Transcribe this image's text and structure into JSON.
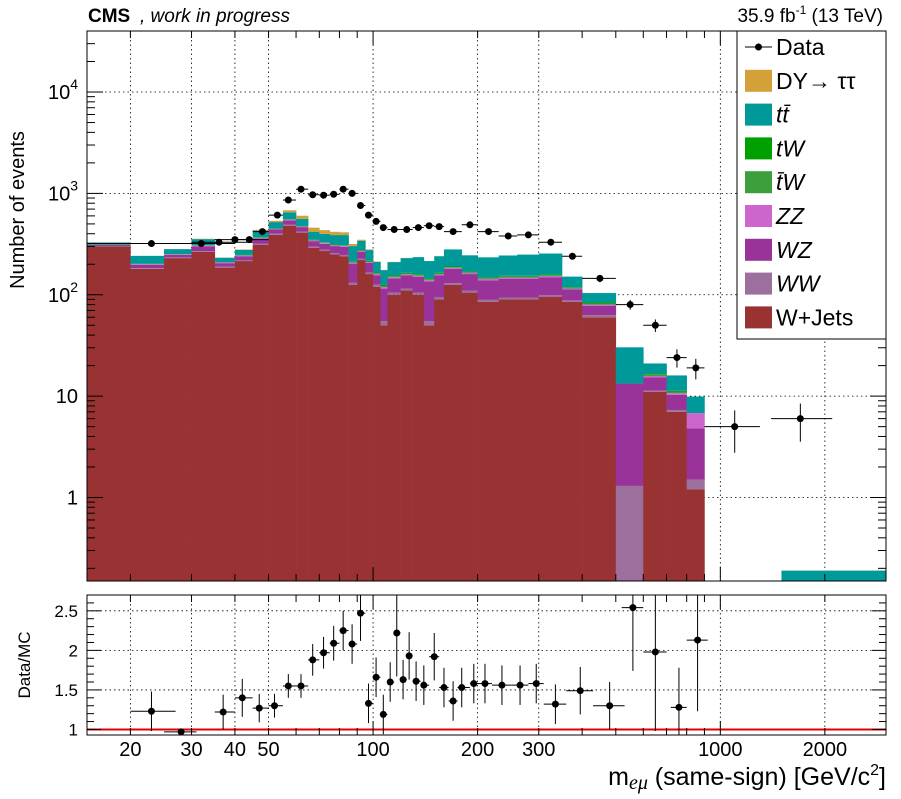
{
  "header": {
    "experiment": "CMS",
    "status": ", work in progress",
    "lumi_value": "35.9 fb",
    "lumi_exp": "-1",
    "lumi_energy": " (13 TeV)"
  },
  "axes": {
    "ylabel_top": "Number of events",
    "ylabel_bottom": "Data/MC",
    "xlabel_main": "m",
    "xlabel_sub": "eμ",
    "xlabel_rest": " (same-sign) [GeV/c",
    "xlabel_sup": "2",
    "xlabel_end": "]"
  },
  "chart_data": {
    "type": "bar",
    "stacked": true,
    "x_scale": "log",
    "y_scale": "log",
    "xlim": [
      15,
      3000
    ],
    "ylim": [
      0.15,
      40000
    ],
    "ratio_ylim": [
      0.93,
      2.7
    ],
    "grid": true,
    "legend_position": "top-right",
    "x_ticks": [
      {
        "value": 20,
        "label": "20"
      },
      {
        "value": 30,
        "label": "30"
      },
      {
        "value": 40,
        "label": "40"
      },
      {
        "value": 50,
        "label": "50"
      },
      {
        "value": 100,
        "label": "100"
      },
      {
        "value": 200,
        "label": "200"
      },
      {
        "value": 300,
        "label": "300"
      },
      {
        "value": 1000,
        "label": "1000"
      },
      {
        "value": 2000,
        "label": "2000"
      }
    ],
    "y_ticks": [
      {
        "value": 1,
        "label": "1"
      },
      {
        "value": 10,
        "label": "10"
      },
      {
        "value": 100,
        "label": "10",
        "exp": "2"
      },
      {
        "value": 1000,
        "label": "10",
        "exp": "3"
      },
      {
        "value": 10000,
        "label": "10",
        "exp": "4"
      }
    ],
    "ratio_ticks": [
      {
        "value": 1,
        "label": "1"
      },
      {
        "value": 1.5,
        "label": "1.5"
      },
      {
        "value": 2,
        "label": "2"
      },
      {
        "value": 2.5,
        "label": "2.5"
      }
    ],
    "legend": [
      {
        "key": "data",
        "name": "Data",
        "style": "marker",
        "color": "#000000"
      },
      {
        "key": "dy",
        "name": "DY→ ττ",
        "style": "box",
        "color": "#d4a038"
      },
      {
        "key": "tt",
        "name": "tt̄",
        "style": "box",
        "color": "#009999"
      },
      {
        "key": "tw",
        "name": "tW",
        "style": "box",
        "color": "#00a000"
      },
      {
        "key": "tbarw",
        "name": "t̄W",
        "style": "box",
        "color": "#3c9f3c"
      },
      {
        "key": "zz",
        "name": "ZZ",
        "style": "box",
        "color": "#cc66cc"
      },
      {
        "key": "wz",
        "name": "WZ",
        "style": "box",
        "color": "#993399"
      },
      {
        "key": "ww",
        "name": "WW",
        "style": "box",
        "color": "#9c6f9c"
      },
      {
        "key": "wjets",
        "name": "W+Jets",
        "style": "box",
        "color": "#993333"
      }
    ],
    "stack_order": [
      "wjets",
      "ww",
      "wz",
      "zz",
      "tbarw",
      "tw",
      "tt",
      "dy"
    ],
    "bins": [
      {
        "lo": 15,
        "hi": 20,
        "wjets": 300,
        "ww": 3,
        "wz": 8,
        "zz": 0,
        "tbarw": 1,
        "tw": 1,
        "tt": 15,
        "dy": 0
      },
      {
        "lo": 20,
        "hi": 25,
        "wjets": 180,
        "ww": 3,
        "wz": 15,
        "zz": 2,
        "tbarw": 1,
        "tw": 1,
        "tt": 40,
        "dy": 0
      },
      {
        "lo": 25,
        "hi": 30,
        "wjets": 230,
        "ww": 4,
        "wz": 14,
        "zz": 2,
        "tbarw": 1,
        "tw": 1,
        "tt": 30,
        "dy": 0
      },
      {
        "lo": 30,
        "hi": 35,
        "wjets": 265,
        "ww": 5,
        "wz": 30,
        "zz": 5,
        "tbarw": 2,
        "tw": 2,
        "tt": 45,
        "dy": 3
      },
      {
        "lo": 35,
        "hi": 40,
        "wjets": 185,
        "ww": 4,
        "wz": 16,
        "zz": 3,
        "tbarw": 1,
        "tw": 1,
        "tt": 22,
        "dy": 1
      },
      {
        "lo": 40,
        "hi": 45,
        "wjets": 215,
        "ww": 5,
        "wz": 20,
        "zz": 3,
        "tbarw": 2,
        "tw": 2,
        "tt": 30,
        "dy": 3
      },
      {
        "lo": 45,
        "hi": 50,
        "wjets": 310,
        "ww": 8,
        "wz": 40,
        "zz": 5,
        "tbarw": 3,
        "tw": 3,
        "tt": 60,
        "dy": 8
      },
      {
        "lo": 50,
        "hi": 55,
        "wjets": 390,
        "ww": 10,
        "wz": 40,
        "zz": 5,
        "tbarw": 3,
        "tw": 3,
        "tt": 70,
        "dy": 15
      },
      {
        "lo": 55,
        "hi": 60,
        "wjets": 480,
        "ww": 12,
        "wz": 50,
        "zz": 6,
        "tbarw": 4,
        "tw": 4,
        "tt": 95,
        "dy": 30
      },
      {
        "lo": 60,
        "hi": 65,
        "wjets": 410,
        "ww": 10,
        "wz": 45,
        "zz": 6,
        "tbarw": 3,
        "tw": 3,
        "tt": 85,
        "dy": 40
      },
      {
        "lo": 65,
        "hi": 70,
        "wjets": 290,
        "ww": 8,
        "wz": 40,
        "zz": 5,
        "tbarw": 3,
        "tw": 3,
        "tt": 70,
        "dy": 40
      },
      {
        "lo": 70,
        "hi": 75,
        "wjets": 270,
        "ww": 8,
        "wz": 40,
        "zz": 5,
        "tbarw": 3,
        "tw": 3,
        "tt": 70,
        "dy": 35
      },
      {
        "lo": 75,
        "hi": 80,
        "wjets": 250,
        "ww": 7,
        "wz": 45,
        "zz": 5,
        "tbarw": 3,
        "tw": 3,
        "tt": 75,
        "dy": 30
      },
      {
        "lo": 80,
        "hi": 85,
        "wjets": 240,
        "ww": 7,
        "wz": 50,
        "zz": 5,
        "tbarw": 3,
        "tw": 3,
        "tt": 80,
        "dy": 25
      },
      {
        "lo": 85,
        "hi": 90,
        "wjets": 125,
        "ww": 6,
        "wz": 70,
        "zz": 5,
        "tbarw": 3,
        "tw": 3,
        "tt": 90,
        "dy": 15
      },
      {
        "lo": 90,
        "hi": 95,
        "wjets": 220,
        "ww": 6,
        "wz": 40,
        "zz": 4,
        "tbarw": 3,
        "tw": 3,
        "tt": 65,
        "dy": 8
      },
      {
        "lo": 95,
        "hi": 100,
        "wjets": 160,
        "ww": 6,
        "wz": 40,
        "zz": 4,
        "tbarw": 3,
        "tw": 3,
        "tt": 60,
        "dy": 4
      },
      {
        "lo": 100,
        "hi": 105,
        "wjets": 120,
        "ww": 6,
        "wz": 30,
        "zz": 4,
        "tbarw": 3,
        "tw": 3,
        "tt": 45,
        "dy": 2
      },
      {
        "lo": 105,
        "hi": 110,
        "wjets": 50,
        "ww": 5,
        "wz": 60,
        "zz": 4,
        "tbarw": 3,
        "tw": 3,
        "tt": 50,
        "dy": 1
      },
      {
        "lo": 110,
        "hi": 120,
        "wjets": 100,
        "ww": 5,
        "wz": 40,
        "zz": 4,
        "tbarw": 3,
        "tw": 3,
        "tt": 55,
        "dy": 1
      },
      {
        "lo": 120,
        "hi": 130,
        "wjets": 110,
        "ww": 5,
        "wz": 40,
        "zz": 4,
        "tbarw": 3,
        "tw": 3,
        "tt": 65,
        "dy": 1
      },
      {
        "lo": 130,
        "hi": 140,
        "wjets": 100,
        "ww": 5,
        "wz": 45,
        "zz": 4,
        "tbarw": 3,
        "tw": 3,
        "tt": 75,
        "dy": 0
      },
      {
        "lo": 140,
        "hi": 150,
        "wjets": 50,
        "ww": 5,
        "wz": 80,
        "zz": 4,
        "tbarw": 3,
        "tw": 3,
        "tt": 70,
        "dy": 0
      },
      {
        "lo": 150,
        "hi": 160,
        "wjets": 90,
        "ww": 5,
        "wz": 60,
        "zz": 4,
        "tbarw": 3,
        "tw": 3,
        "tt": 75,
        "dy": 0
      },
      {
        "lo": 160,
        "hi": 180,
        "wjets": 125,
        "ww": 5,
        "wz": 50,
        "zz": 4,
        "tbarw": 3,
        "tw": 3,
        "tt": 90,
        "dy": 0
      },
      {
        "lo": 180,
        "hi": 200,
        "wjets": 105,
        "ww": 5,
        "wz": 50,
        "zz": 4,
        "tbarw": 3,
        "tw": 3,
        "tt": 75,
        "dy": 0
      },
      {
        "lo": 200,
        "hi": 230,
        "wjets": 85,
        "ww": 4,
        "wz": 50,
        "zz": 4,
        "tbarw": 3,
        "tw": 3,
        "tt": 85,
        "dy": 0
      },
      {
        "lo": 230,
        "hi": 260,
        "wjets": 90,
        "ww": 4,
        "wz": 50,
        "zz": 4,
        "tbarw": 3,
        "tw": 3,
        "tt": 90,
        "dy": 0
      },
      {
        "lo": 260,
        "hi": 300,
        "wjets": 90,
        "ww": 4,
        "wz": 50,
        "zz": 4,
        "tbarw": 3,
        "tw": 3,
        "tt": 95,
        "dy": 0
      },
      {
        "lo": 300,
        "hi": 350,
        "wjets": 95,
        "ww": 4,
        "wz": 50,
        "zz": 4,
        "tbarw": 3,
        "tw": 3,
        "tt": 96,
        "dy": 0
      },
      {
        "lo": 350,
        "hi": 400,
        "wjets": 85,
        "ww": 3,
        "wz": 25,
        "zz": 2,
        "tbarw": 2,
        "tw": 2,
        "tt": 32,
        "dy": 0
      },
      {
        "lo": 400,
        "hi": 500,
        "wjets": 60,
        "ww": 3,
        "wz": 15,
        "zz": 2,
        "tbarw": 2,
        "tw": 2,
        "tt": 20,
        "dy": 0
      },
      {
        "lo": 500,
        "hi": 600,
        "wjets": 0,
        "ww": 1.3,
        "wz": 12,
        "zz": 0,
        "tbarw": 0,
        "tw": 0,
        "tt": 17,
        "dy": 0
      },
      {
        "lo": 600,
        "hi": 700,
        "wjets": 11,
        "ww": 0.3,
        "wz": 4,
        "zz": 0.5,
        "tbarw": 0.6,
        "tw": 0.3,
        "tt": 4.3,
        "dy": 0
      },
      {
        "lo": 700,
        "hi": 800,
        "wjets": 7,
        "ww": 0.3,
        "wz": 3,
        "zz": 0.4,
        "tbarw": 0.3,
        "tw": 0.3,
        "tt": 4.7,
        "dy": 0
      },
      {
        "lo": 800,
        "hi": 900,
        "wjets": 1.2,
        "ww": 0.3,
        "wz": 3.3,
        "zz": 2,
        "tbarw": 0,
        "tw": 0,
        "tt": 3.1,
        "dy": 0
      },
      {
        "lo": 1500,
        "hi": 3000,
        "wjets": 0,
        "ww": 0,
        "wz": 0,
        "zz": 0,
        "tbarw": 0,
        "tw": 0,
        "tt": 0.19,
        "dy": 0
      }
    ],
    "data_points": [
      {
        "x": 23,
        "xlo": 15,
        "xhi": 30,
        "y": 320
      },
      {
        "x": 32,
        "xlo": 25,
        "xhi": 40,
        "y": 320
      },
      {
        "x": 36,
        "xlo": 30,
        "xhi": 45,
        "y": 330
      },
      {
        "x": 40,
        "xlo": 35,
        "xhi": 45,
        "y": 350
      },
      {
        "x": 44,
        "xlo": 40,
        "xhi": 50,
        "y": 350
      },
      {
        "x": 48,
        "xlo": 45,
        "xhi": 50,
        "y": 420
      },
      {
        "x": 53,
        "xlo": 50,
        "xhi": 55,
        "y": 610
      },
      {
        "x": 57,
        "xlo": 55,
        "xhi": 60,
        "y": 860
      },
      {
        "x": 62,
        "xlo": 60,
        "xhi": 65,
        "y": 1100
      },
      {
        "x": 67,
        "xlo": 65,
        "xhi": 70,
        "y": 970
      },
      {
        "x": 72,
        "xlo": 70,
        "xhi": 75,
        "y": 960
      },
      {
        "x": 77,
        "xlo": 75,
        "xhi": 80,
        "y": 980
      },
      {
        "x": 82,
        "xlo": 80,
        "xhi": 85,
        "y": 1100
      },
      {
        "x": 87,
        "xlo": 85,
        "xhi": 90,
        "y": 1000
      },
      {
        "x": 92,
        "xlo": 90,
        "xhi": 95,
        "y": 760
      },
      {
        "x": 97,
        "xlo": 95,
        "xhi": 100,
        "y": 610
      },
      {
        "x": 102,
        "xlo": 100,
        "xhi": 105,
        "y": 530
      },
      {
        "x": 107,
        "xlo": 105,
        "xhi": 110,
        "y": 460
      },
      {
        "x": 115,
        "xlo": 110,
        "xhi": 120,
        "y": 440
      },
      {
        "x": 125,
        "xlo": 120,
        "xhi": 130,
        "y": 440
      },
      {
        "x": 135,
        "xlo": 130,
        "xhi": 140,
        "y": 460
      },
      {
        "x": 145,
        "xlo": 140,
        "xhi": 150,
        "y": 480
      },
      {
        "x": 155,
        "xlo": 150,
        "xhi": 160,
        "y": 470
      },
      {
        "x": 170,
        "xlo": 160,
        "xhi": 180,
        "y": 420
      },
      {
        "x": 190,
        "xlo": 180,
        "xhi": 200,
        "y": 490
      },
      {
        "x": 215,
        "xlo": 200,
        "xhi": 230,
        "y": 420
      },
      {
        "x": 245,
        "xlo": 230,
        "xhi": 260,
        "y": 380
      },
      {
        "x": 280,
        "xlo": 260,
        "xhi": 300,
        "y": 390
      },
      {
        "x": 325,
        "xlo": 300,
        "xhi": 350,
        "y": 330
      },
      {
        "x": 375,
        "xlo": 350,
        "xhi": 400,
        "y": 240
      },
      {
        "x": 450,
        "xlo": 400,
        "xhi": 500,
        "y": 145
      },
      {
        "x": 550,
        "xlo": 500,
        "xhi": 600,
        "y": 80
      },
      {
        "x": 650,
        "xlo": 600,
        "xhi": 700,
        "y": 50
      },
      {
        "x": 750,
        "xlo": 700,
        "xhi": 800,
        "y": 24
      },
      {
        "x": 850,
        "xlo": 800,
        "xhi": 900,
        "y": 19
      },
      {
        "x": 1100,
        "xlo": 900,
        "xhi": 1300,
        "y": 5
      },
      {
        "x": 1700,
        "xlo": 1400,
        "xhi": 2100,
        "y": 6
      }
    ],
    "ratio_points": [
      {
        "x": 23,
        "xlo": 20,
        "xhi": 27,
        "y": 1.23,
        "err": 0.25
      },
      {
        "x": 28,
        "xlo": 25,
        "xhi": 31,
        "y": 0.97,
        "err": 0.04
      },
      {
        "x": 37,
        "xlo": 35,
        "xhi": 40,
        "y": 1.22,
        "err": 0.22
      },
      {
        "x": 42,
        "xlo": 40,
        "xhi": 45,
        "y": 1.4,
        "err": 0.24
      },
      {
        "x": 47,
        "xlo": 45,
        "xhi": 50,
        "y": 1.27,
        "err": 0.18
      },
      {
        "x": 52,
        "xlo": 50,
        "xhi": 55,
        "y": 1.3,
        "err": 0.15
      },
      {
        "x": 57,
        "xlo": 55,
        "xhi": 60,
        "y": 1.55,
        "err": 0.15
      },
      {
        "x": 62,
        "xlo": 60,
        "xhi": 65,
        "y": 1.55,
        "err": 0.15
      },
      {
        "x": 67,
        "xlo": 65,
        "xhi": 70,
        "y": 1.88,
        "err": 0.2
      },
      {
        "x": 72,
        "xlo": 70,
        "xhi": 75,
        "y": 1.97,
        "err": 0.2
      },
      {
        "x": 77,
        "xlo": 75,
        "xhi": 80,
        "y": 2.09,
        "err": 0.22
      },
      {
        "x": 82,
        "xlo": 80,
        "xhi": 85,
        "y": 2.25,
        "err": 0.25
      },
      {
        "x": 87,
        "xlo": 85,
        "xhi": 90,
        "y": 2.08,
        "err": 0.25
      },
      {
        "x": 92,
        "xlo": 90,
        "xhi": 95,
        "y": 2.47,
        "err": 0.35
      },
      {
        "x": 97,
        "xlo": 95,
        "xhi": 100,
        "y": 1.33,
        "err": 0.25
      },
      {
        "x": 102,
        "xlo": 100,
        "xhi": 105,
        "y": 1.66,
        "err": 0.25
      },
      {
        "x": 107,
        "xlo": 105,
        "xhi": 110,
        "y": 1.19,
        "err": 0.25
      },
      {
        "x": 112,
        "xlo": 110,
        "xhi": 115,
        "y": 1.6,
        "err": 0.25
      },
      {
        "x": 117,
        "xlo": 115,
        "xhi": 120,
        "y": 2.22,
        "err": 0.55
      },
      {
        "x": 122,
        "xlo": 120,
        "xhi": 125,
        "y": 1.63,
        "err": 0.25
      },
      {
        "x": 127,
        "xlo": 125,
        "xhi": 130,
        "y": 1.93,
        "err": 0.3
      },
      {
        "x": 133,
        "xlo": 130,
        "xhi": 137,
        "y": 1.61,
        "err": 0.25
      },
      {
        "x": 140,
        "xlo": 137,
        "xhi": 145,
        "y": 1.56,
        "err": 0.25
      },
      {
        "x": 150,
        "xlo": 145,
        "xhi": 155,
        "y": 1.92,
        "err": 0.3
      },
      {
        "x": 160,
        "xlo": 155,
        "xhi": 165,
        "y": 1.53,
        "err": 0.25
      },
      {
        "x": 170,
        "xlo": 165,
        "xhi": 175,
        "y": 1.36,
        "err": 0.25
      },
      {
        "x": 180,
        "xlo": 175,
        "xhi": 190,
        "y": 1.53,
        "err": 0.25
      },
      {
        "x": 195,
        "xlo": 190,
        "xhi": 205,
        "y": 1.58,
        "err": 0.25
      },
      {
        "x": 210,
        "xlo": 205,
        "xhi": 220,
        "y": 1.58,
        "err": 0.25
      },
      {
        "x": 235,
        "xlo": 220,
        "xhi": 250,
        "y": 1.56,
        "err": 0.25
      },
      {
        "x": 265,
        "xlo": 250,
        "xhi": 280,
        "y": 1.56,
        "err": 0.25
      },
      {
        "x": 295,
        "xlo": 280,
        "xhi": 310,
        "y": 1.58,
        "err": 0.25
      },
      {
        "x": 335,
        "xlo": 310,
        "xhi": 360,
        "y": 1.32,
        "err": 0.25
      },
      {
        "x": 395,
        "xlo": 360,
        "xhi": 430,
        "y": 1.49,
        "err": 0.3
      },
      {
        "x": 480,
        "xlo": 430,
        "xhi": 530,
        "y": 1.3,
        "err": 0.3
      },
      {
        "x": 560,
        "xlo": 520,
        "xhi": 600,
        "y": 2.54,
        "err": 0.8
      },
      {
        "x": 650,
        "xlo": 600,
        "xhi": 700,
        "y": 1.98,
        "err": 1.0
      },
      {
        "x": 760,
        "xlo": 720,
        "xhi": 800,
        "y": 1.28,
        "err": 0.5
      },
      {
        "x": 860,
        "xlo": 800,
        "xhi": 920,
        "y": 2.13,
        "err": 0.9
      }
    ]
  }
}
